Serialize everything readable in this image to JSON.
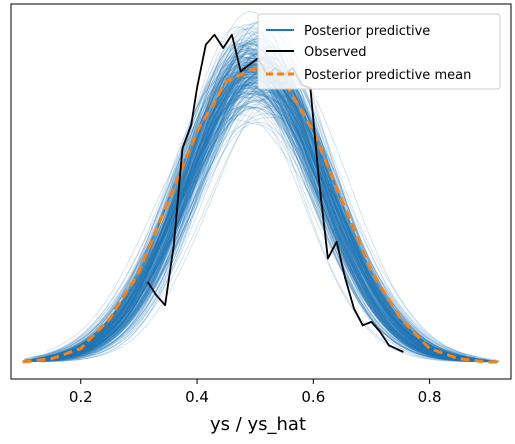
{
  "chart_data": {
    "type": "line",
    "xlabel": "ys / ys_hat",
    "ylabel": "",
    "xlim": [
      0.08,
      0.94
    ],
    "ylim": [
      0,
      1
    ],
    "xticks": [
      0.2,
      0.4,
      0.6,
      0.8
    ],
    "x_tick_labels": [
      "0.2",
      "0.4",
      "0.6",
      "0.8"
    ],
    "grid": false,
    "legend_position": "top-right",
    "series": [
      {
        "name": "Posterior predictive",
        "color": "#1f77b4",
        "style": "many thin translucent sample curves",
        "x": [
          0.1,
          0.15,
          0.2,
          0.25,
          0.3,
          0.35,
          0.4,
          0.45,
          0.5,
          0.55,
          0.6,
          0.65,
          0.7,
          0.75,
          0.8,
          0.85,
          0.9
        ],
        "y": [
          0.0,
          0.01,
          0.04,
          0.13,
          0.27,
          0.48,
          0.69,
          0.84,
          0.88,
          0.84,
          0.69,
          0.48,
          0.27,
          0.13,
          0.04,
          0.01,
          0.0
        ]
      },
      {
        "name": "Observed",
        "color": "#000000",
        "style": "solid",
        "x": [
          0.315,
          0.33,
          0.345,
          0.36,
          0.375,
          0.39,
          0.4,
          0.415,
          0.43,
          0.445,
          0.46,
          0.475,
          0.49,
          0.505,
          0.52,
          0.535,
          0.55,
          0.565,
          0.58,
          0.595,
          0.61,
          0.625,
          0.64,
          0.655,
          0.67,
          0.685,
          0.7,
          0.715,
          0.73,
          0.755
        ],
        "y": [
          0.24,
          0.2,
          0.17,
          0.35,
          0.64,
          0.71,
          0.82,
          0.95,
          0.98,
          0.94,
          0.98,
          0.87,
          0.89,
          0.91,
          0.86,
          0.88,
          0.86,
          0.88,
          0.83,
          0.82,
          0.54,
          0.31,
          0.36,
          0.25,
          0.16,
          0.11,
          0.12,
          0.09,
          0.05,
          0.03
        ]
      },
      {
        "name": "Posterior predictive mean",
        "color": "#ff7f0e",
        "style": "dashed",
        "x": [
          0.1,
          0.15,
          0.2,
          0.25,
          0.3,
          0.35,
          0.4,
          0.45,
          0.5,
          0.55,
          0.6,
          0.65,
          0.7,
          0.75,
          0.8,
          0.85,
          0.9,
          0.92
        ],
        "y": [
          0.0,
          0.01,
          0.04,
          0.13,
          0.27,
          0.48,
          0.69,
          0.84,
          0.88,
          0.84,
          0.69,
          0.48,
          0.27,
          0.13,
          0.04,
          0.01,
          0.0,
          0.0
        ]
      }
    ]
  }
}
